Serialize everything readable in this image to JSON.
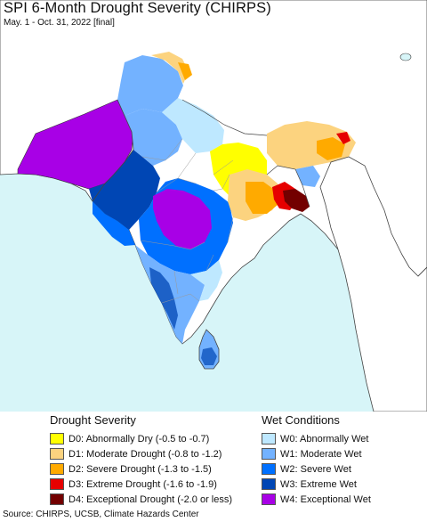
{
  "title": "SPI 6-Month Drought Severity (CHIRPS)",
  "subtitle": "May. 1 - Oct. 31, 2022 [final]",
  "source": "Source: CHIRPS, UCSB, Climate Hazards Center",
  "colors": {
    "water": "#d7f5f8",
    "land": "#ffffff",
    "border": "#444444",
    "state_border": "#999999"
  },
  "legend": {
    "drought": {
      "heading": "Drought Severity",
      "items": [
        {
          "label": "D0: Abnormally Dry (-0.5 to -0.7)",
          "color": "#ffff00"
        },
        {
          "label": "D1: Moderate Drought (-0.8 to -1.2)",
          "color": "#fcd37f"
        },
        {
          "label": "D2: Severe Drought (-1.3 to -1.5)",
          "color": "#ffaa00"
        },
        {
          "label": "D3: Extreme Drought (-1.6 to -1.9)",
          "color": "#e60000"
        },
        {
          "label": "D4: Exceptional Drought (-2.0 or less)",
          "color": "#730000"
        }
      ]
    },
    "wet": {
      "heading": "Wet Conditions",
      "items": [
        {
          "label": "W0: Abnormally Wet",
          "color": "#bee8ff"
        },
        {
          "label": "W1: Moderate Wet",
          "color": "#73b2ff"
        },
        {
          "label": "W2: Severe Wet",
          "color": "#0070ff"
        },
        {
          "label": "W3: Extreme Wet",
          "color": "#0046b4"
        },
        {
          "label": "W4: Exceptional Wet",
          "color": "#a800e6"
        }
      ]
    }
  }
}
